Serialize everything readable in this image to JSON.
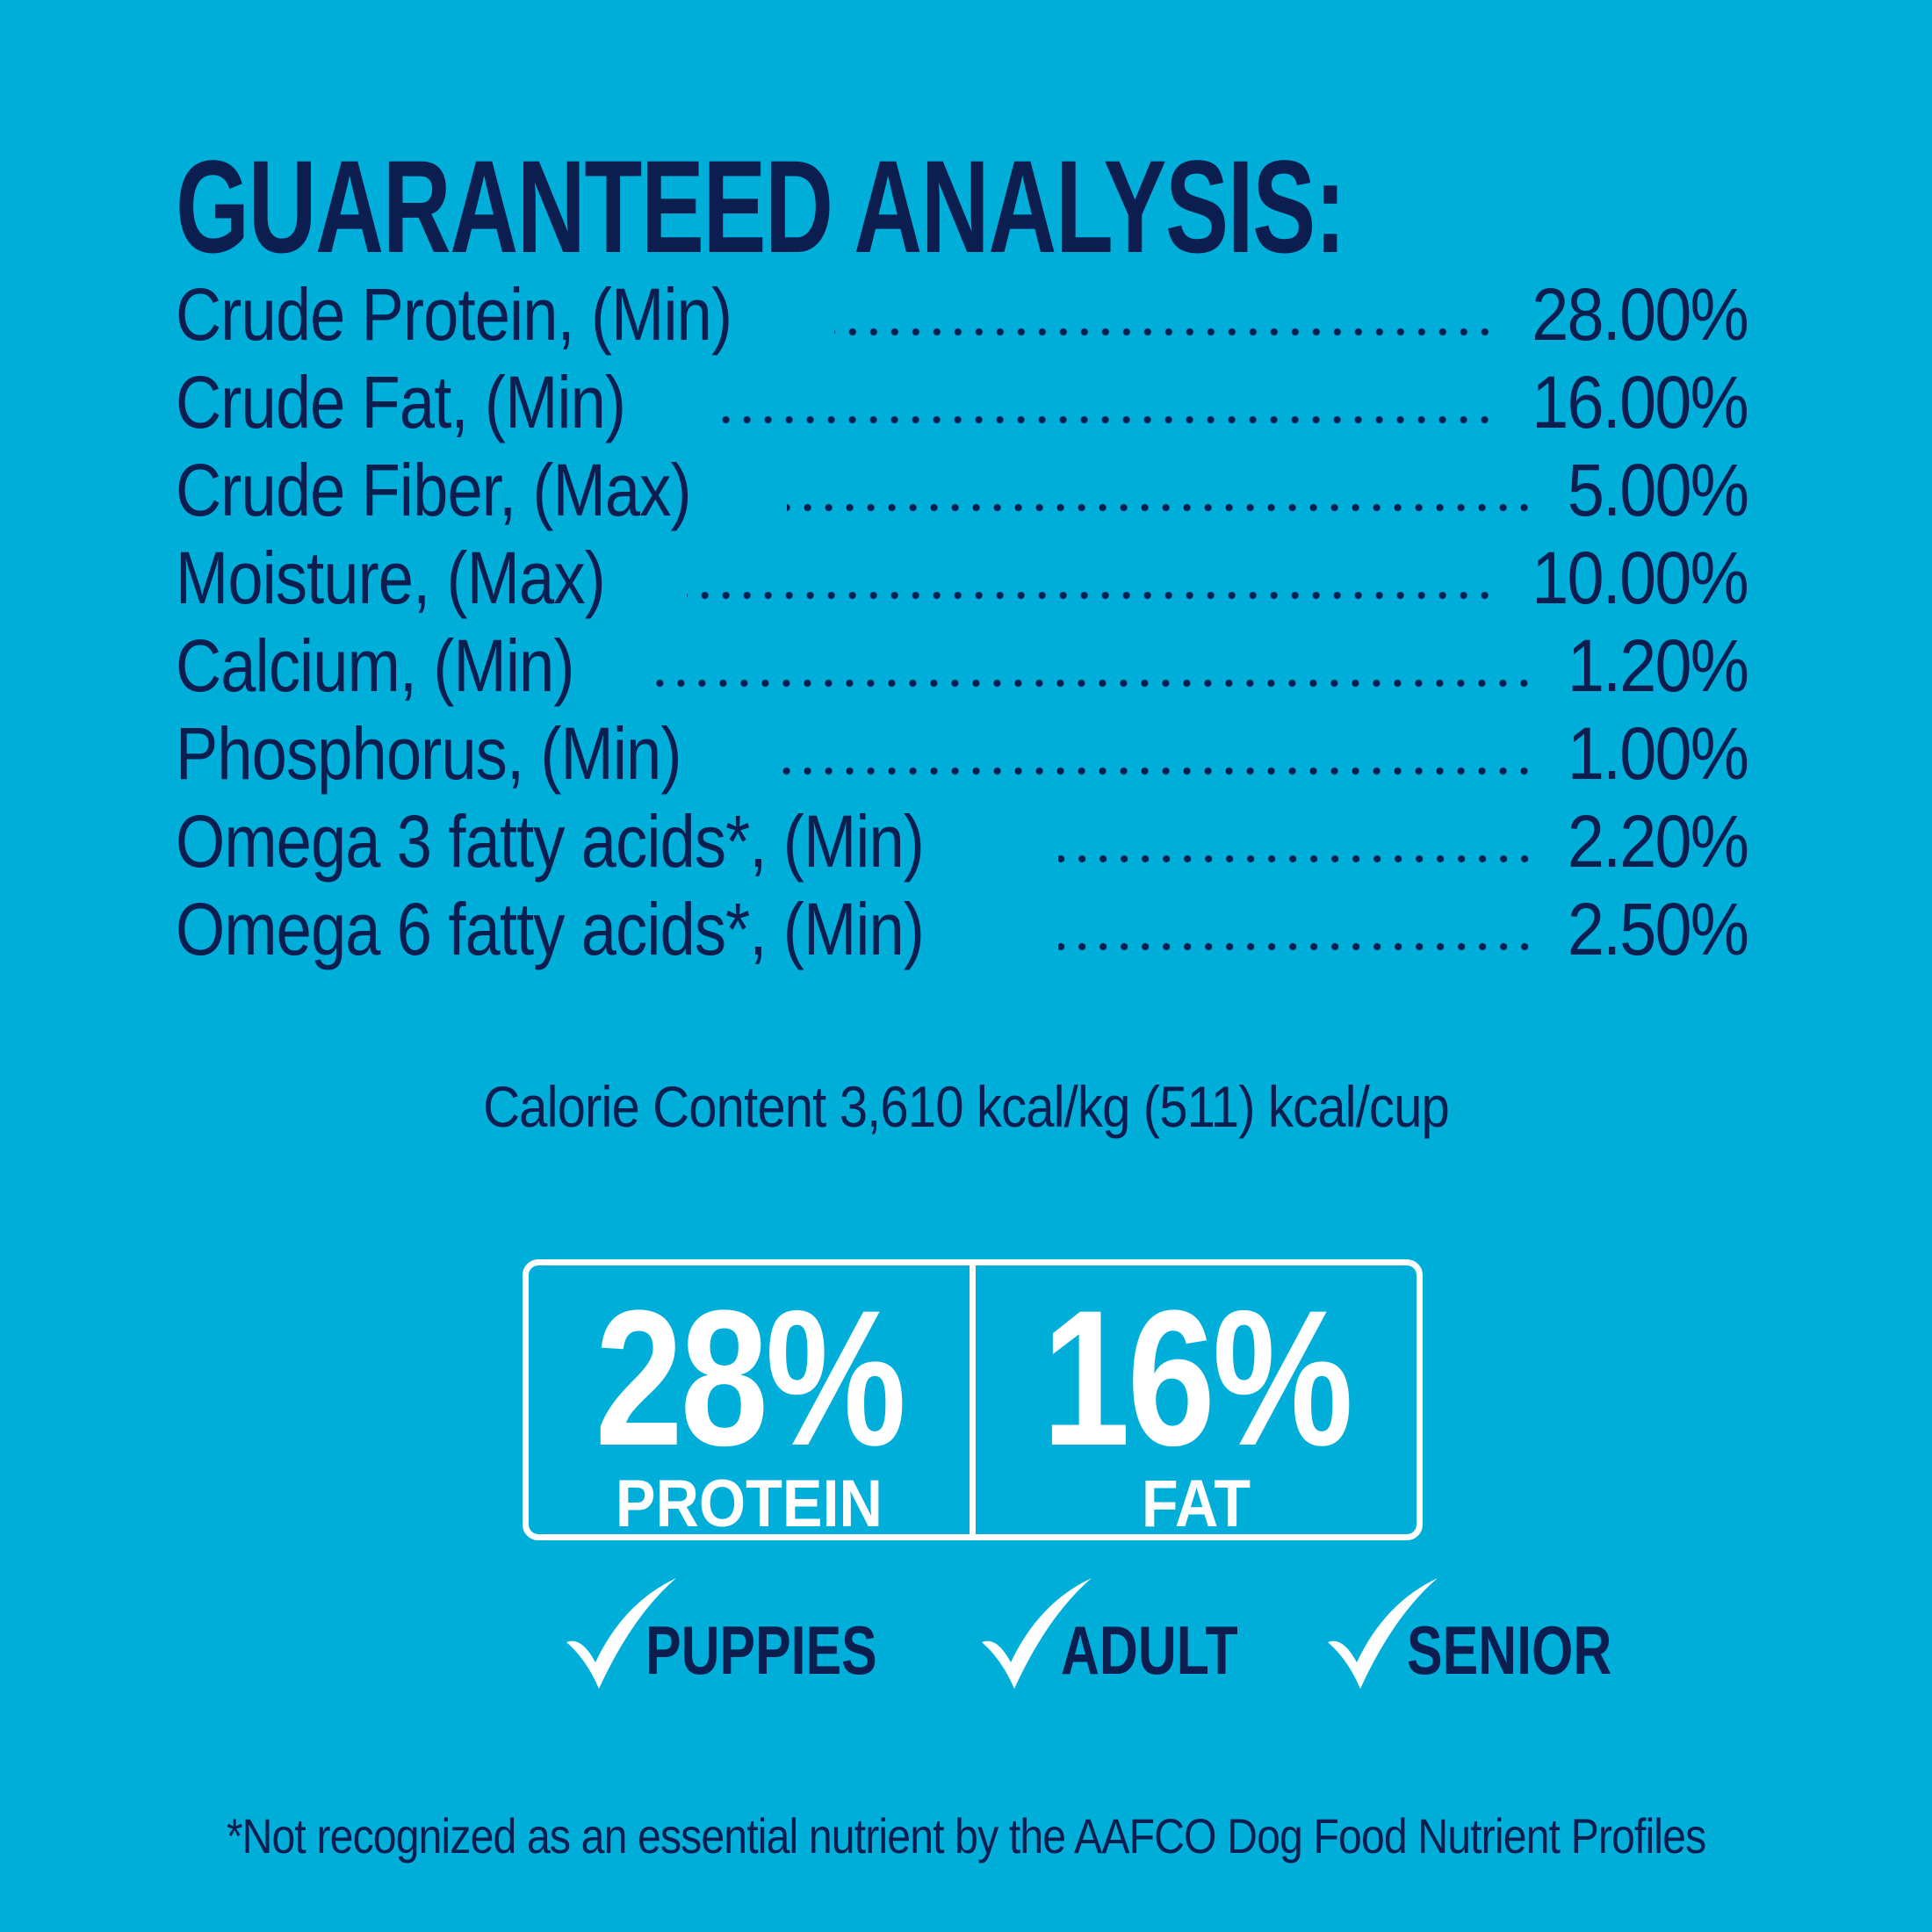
{
  "title": "GUARANTEED ANALYSIS:",
  "rows": [
    {
      "label": "Crude Protein, (Min)",
      "value": "28.00%"
    },
    {
      "label": "Crude Fat, (Min)",
      "value": "16.00%"
    },
    {
      "label": "Crude Fiber, (Max)",
      "value": "5.00%"
    },
    {
      "label": "Moisture, (Max)",
      "value": "10.00%"
    },
    {
      "label": "Calcium, (Min)",
      "value": "1.20%"
    },
    {
      "label": "Phosphorus, (Min)",
      "value": "1.00%"
    },
    {
      "label": "Omega 3 fatty acids*, (Min)",
      "value": "2.20%"
    },
    {
      "label": "Omega 6 fatty acids*, (Min)",
      "value": "2.50%"
    }
  ],
  "calorie": "Calorie Content 3,610 kcal/kg (511) kcal/cup",
  "badge": [
    {
      "value": "28%",
      "label": "PROTEIN"
    },
    {
      "value": "16%",
      "label": "FAT"
    }
  ],
  "life_stages": [
    "PUPPIES",
    "ADULT",
    "SENIOR"
  ],
  "footnote": "*Not recognized as an essential nutrient by the AAFCO Dog Food Nutrient Profiles",
  "colors": {
    "background": "#00aeda",
    "text": "#0b1e4f",
    "badge": "#ffffff"
  }
}
